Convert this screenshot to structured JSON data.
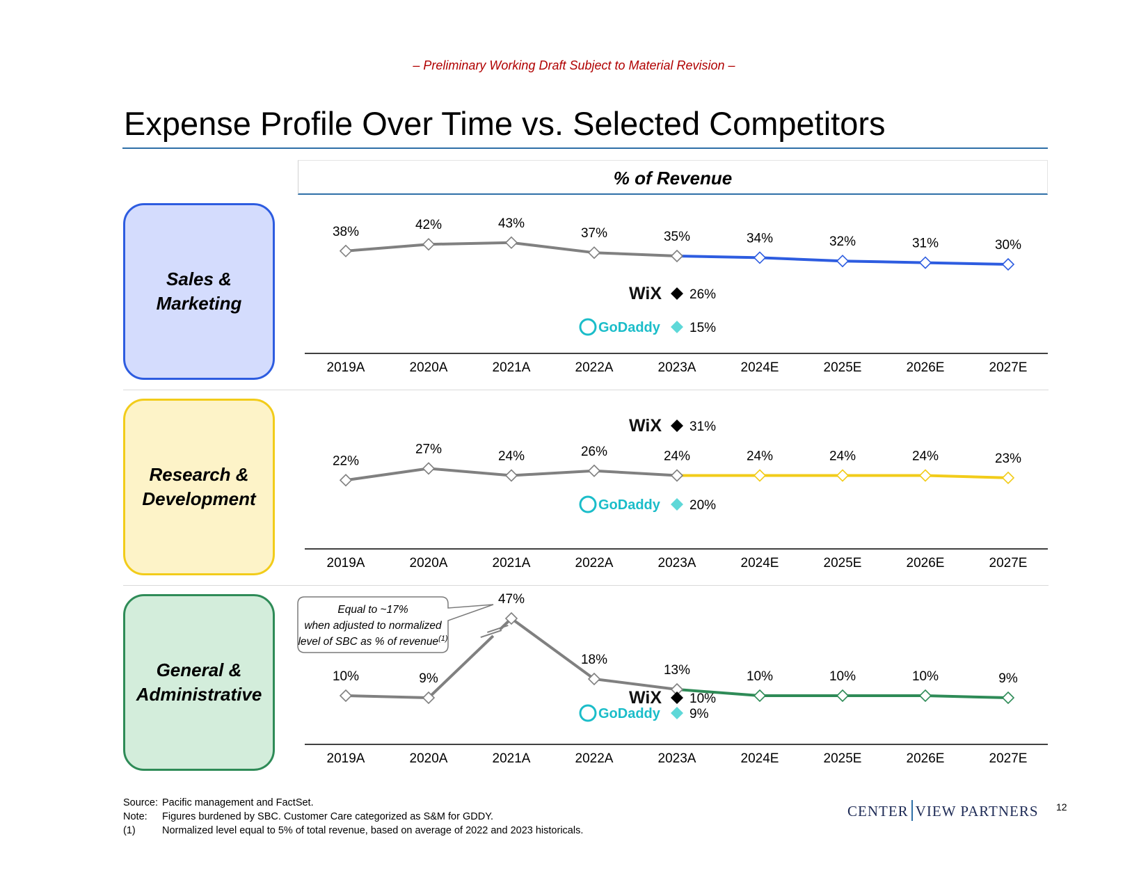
{
  "header": {
    "draft_notice": "– Preliminary Working Draft Subject to Material Revision –",
    "title": "Expense Profile Over Time vs. Selected Competitors",
    "panel_title": "% of Revenue"
  },
  "categories": [
    {
      "label": "Sales &\nMarketing"
    },
    {
      "label": "Research &\nDevelopment"
    },
    {
      "label": "General &\nAdministrative"
    }
  ],
  "colors": {
    "historical": "#808080",
    "sales_marketing": "#2d5ce0",
    "research_development": "#f2cc1a",
    "general_admin": "#2e8b57",
    "wix_marker": "#000000",
    "godaddy_marker": "#5ed8d8",
    "godaddy_text": "#1bbdc9",
    "draft": "#b00000",
    "rule": "#2e6fa7"
  },
  "chart_data": [
    {
      "type": "line",
      "title": "Sales & Marketing",
      "categories": [
        "2019A",
        "2020A",
        "2021A",
        "2022A",
        "2023A",
        "2024E",
        "2025E",
        "2026E",
        "2027E"
      ],
      "series": [
        {
          "name": "Pacific",
          "values": [
            38,
            42,
            43,
            37,
            35,
            34,
            32,
            31,
            30
          ]
        }
      ],
      "labels": [
        "38%",
        "42%",
        "43%",
        "37%",
        "35%",
        "34%",
        "32%",
        "31%",
        "30%"
      ],
      "ylim": [
        20,
        50
      ],
      "forecast_start_index": 4,
      "color": "#2d5ce0",
      "competitors": [
        {
          "name": "WiX",
          "value": 26,
          "label": "26%"
        },
        {
          "name": "GoDaddy",
          "value": 15,
          "label": "15%"
        }
      ]
    },
    {
      "type": "line",
      "title": "Research & Development",
      "categories": [
        "2019A",
        "2020A",
        "2021A",
        "2022A",
        "2023A",
        "2024E",
        "2025E",
        "2026E",
        "2027E"
      ],
      "series": [
        {
          "name": "Pacific",
          "values": [
            22,
            27,
            24,
            26,
            24,
            24,
            24,
            24,
            23
          ]
        }
      ],
      "labels": [
        "22%",
        "27%",
        "24%",
        "26%",
        "24%",
        "24%",
        "24%",
        "24%",
        "23%"
      ],
      "ylim": [
        12,
        36
      ],
      "forecast_start_index": 4,
      "color": "#f2cc1a",
      "competitors": [
        {
          "name": "WiX",
          "value": 31,
          "label": "31%"
        },
        {
          "name": "GoDaddy",
          "value": 20,
          "label": "20%"
        }
      ]
    },
    {
      "type": "line",
      "title": "General & Administrative",
      "categories": [
        "2019A",
        "2020A",
        "2021A",
        "2022A",
        "2023A",
        "2024E",
        "2025E",
        "2026E",
        "2027E"
      ],
      "series": [
        {
          "name": "Pacific",
          "values": [
            10,
            9,
            47,
            18,
            13,
            10,
            10,
            10,
            9
          ]
        }
      ],
      "labels": [
        "10%",
        "9%",
        "47%",
        "18%",
        "13%",
        "10%",
        "10%",
        "10%",
        "9%"
      ],
      "ylim": [
        0,
        50
      ],
      "forecast_start_index": 4,
      "color": "#2e8b57",
      "axis_break_between": [
        1,
        2
      ],
      "competitors": [
        {
          "name": "WiX",
          "value": 10,
          "label": "10%"
        },
        {
          "name": "GoDaddy",
          "value": 9,
          "label": "9%"
        }
      ],
      "annotation": "Equal to ~17% when adjusted to normalized level of SBC as % of revenue",
      "annotation_ref": "(1)"
    }
  ],
  "logos": {
    "wix": "WiX",
    "godaddy": "GoDaddy"
  },
  "footnotes": [
    {
      "key": "Source:",
      "text": "Pacific management and FactSet."
    },
    {
      "key": "Note:",
      "text": "Figures burdened by SBC. Customer Care categorized as S&M for GDDY."
    },
    {
      "key": "(1)",
      "text": "Normalized level equal to 5% of total revenue, based on average of 2022 and 2023 historicals."
    }
  ],
  "footer": {
    "logo_left": "CENTER",
    "logo_right": "VIEW PARTNERS",
    "page_number": "12"
  }
}
